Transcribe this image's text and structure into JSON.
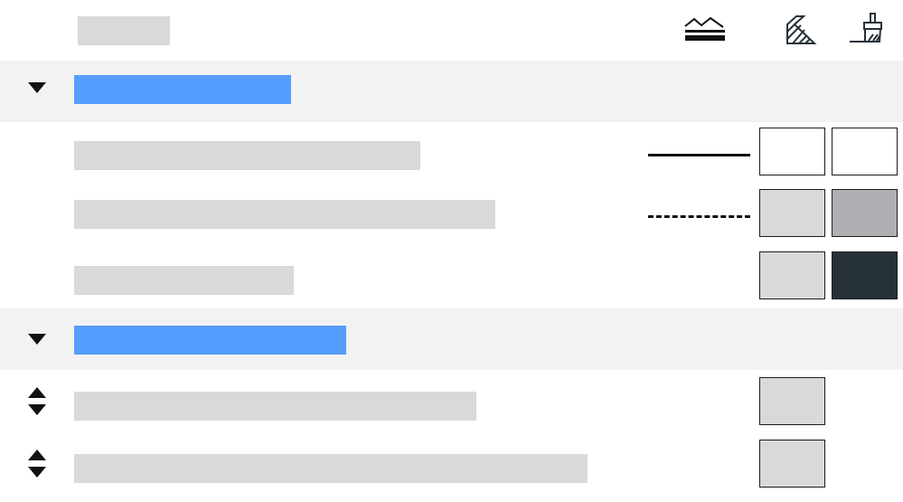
{
  "colors": {
    "accent": "#559dff",
    "placeholder": "#d9d9d9",
    "group_bg": "#f2f2f2",
    "swatch_white": "#ffffff",
    "swatch_light": "#d9d9d9",
    "swatch_mid": "#b0afb4",
    "swatch_dark": "#263238"
  },
  "header": {
    "icons": [
      "terrain-layers-icon",
      "hatch-fill-icon",
      "paint-brush-icon"
    ]
  },
  "groups": [
    {
      "expanded": true,
      "rows": [
        {
          "line": "solid",
          "swatches": [
            "#ffffff",
            "#ffffff"
          ]
        },
        {
          "line": "dashed",
          "swatches": [
            "#d9d9d9",
            "#b0afb4"
          ]
        },
        {
          "line": "none",
          "swatches": [
            "#d9d9d9",
            "#263238"
          ]
        }
      ]
    },
    {
      "expanded": true,
      "rows": [
        {
          "sortable": true,
          "swatches": [
            "#d9d9d9"
          ]
        },
        {
          "sortable": true,
          "swatches": [
            "#d9d9d9"
          ]
        }
      ]
    }
  ]
}
